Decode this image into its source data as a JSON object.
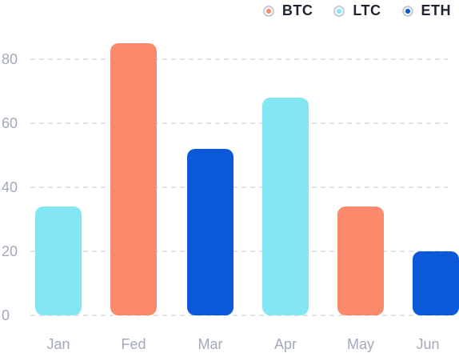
{
  "chart_data": {
    "type": "bar",
    "categories": [
      "Jan",
      "Fed",
      "Mar",
      "Apr",
      "May",
      "Jun"
    ],
    "values": [
      34,
      85,
      52,
      68,
      34,
      20
    ],
    "series_of_bar": [
      "LTC",
      "BTC",
      "ETH",
      "LTC",
      "BTC",
      "ETH"
    ],
    "ylim": [
      0,
      90
    ],
    "yticks": [
      0,
      20,
      40,
      60,
      80
    ],
    "grid": true,
    "legend_position": "top-right",
    "legend": [
      {
        "name": "BTC",
        "color": "#fa8a6b"
      },
      {
        "name": "LTC",
        "color": "#83e7f3"
      },
      {
        "name": "ETH",
        "color": "#0b59d9"
      }
    ]
  }
}
